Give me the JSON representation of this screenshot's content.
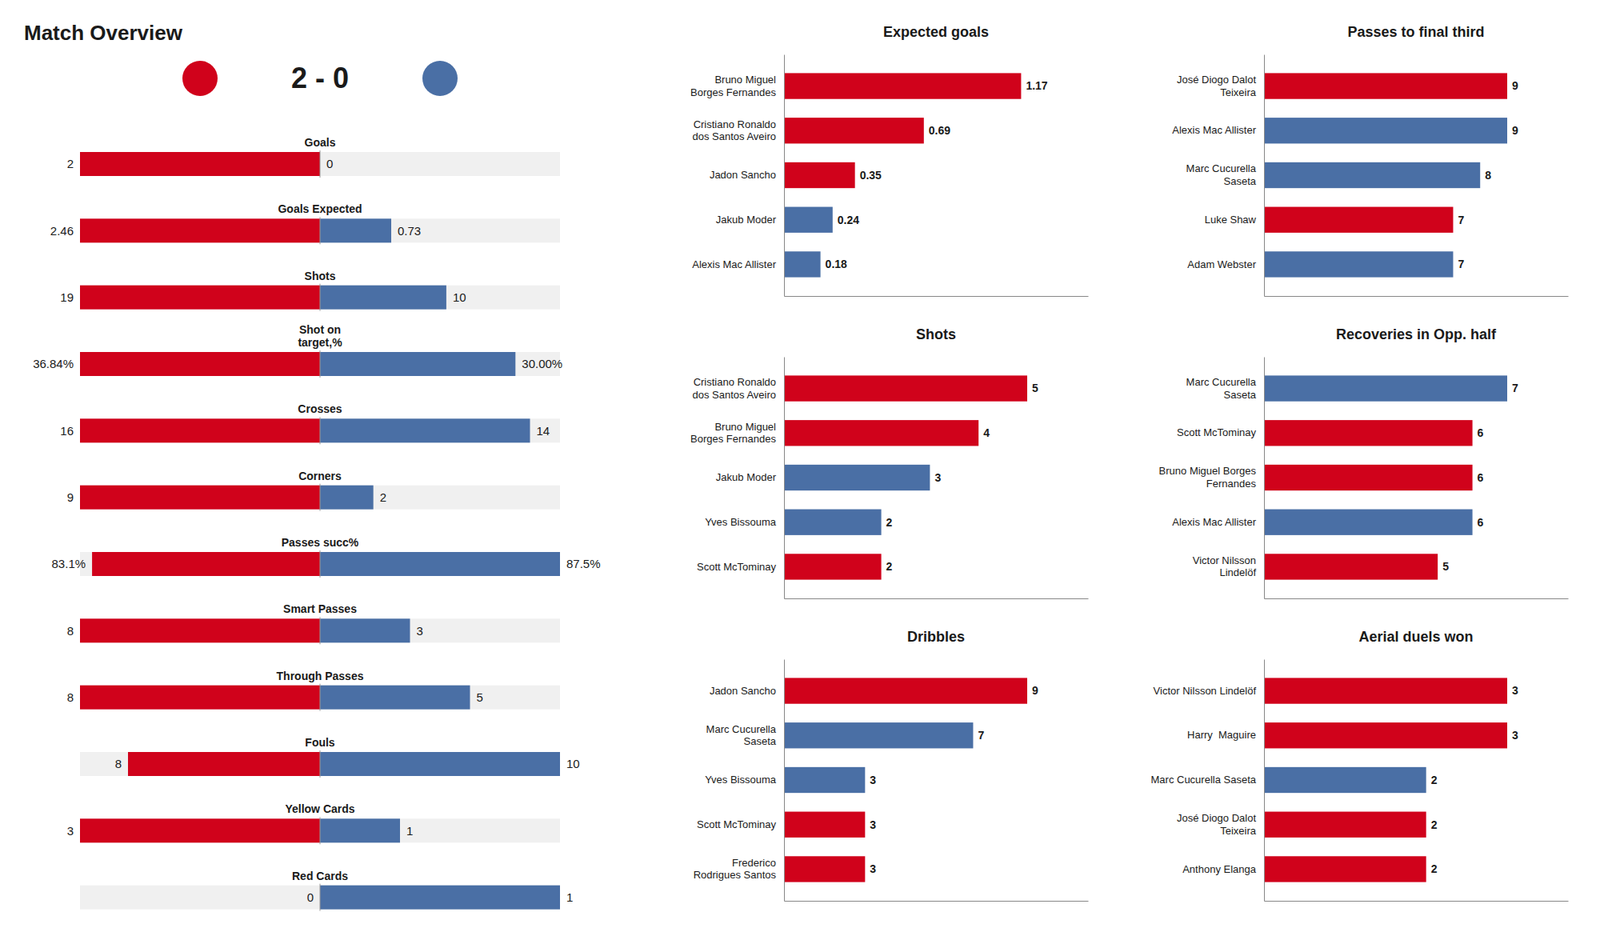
{
  "chart_data": [
    {
      "type": "diverging",
      "orientation": "horizontal",
      "title": "Match Overview",
      "subtitle": "2 - 0",
      "categories": [
        "Goals",
        "Goals Expected",
        "Shots",
        "Shot on\ntarget,%",
        "Crosses",
        "Corners",
        "Passes succ%",
        "Smart Passes",
        "Through Passes",
        "Fouls",
        "Yellow Cards",
        "Red Cards"
      ],
      "series": [
        {
          "color": "#D0021B",
          "values": [
            2,
            2.46,
            19,
            36.84,
            16,
            9,
            83.1,
            8,
            8,
            8,
            3,
            0
          ],
          "value_labels": [
            "2",
            "2.46",
            "19",
            "36.84%",
            "16",
            "9",
            "83.1%",
            "8",
            "8",
            "8",
            "3",
            "0"
          ]
        },
        {
          "color": "#4A6FA5",
          "values": [
            0,
            0.73,
            10,
            30.0,
            14,
            2,
            87.5,
            3,
            5,
            10,
            1,
            1
          ],
          "value_labels": [
            "0",
            "0.73",
            "10",
            "30.00%",
            "14",
            "2",
            "87.5%",
            "3",
            "5",
            "10",
            "1",
            "1"
          ]
        }
      ],
      "scale_max": [
        2,
        2.46,
        19,
        36.84,
        16,
        9,
        87.5,
        8,
        8,
        10,
        3,
        1
      ],
      "data_labels": true,
      "tick_labels": "y",
      "grid": false
    },
    {
      "type": "bar",
      "orientation": "horizontal",
      "title": "Expected goals",
      "categories": [
        "Bruno Miguel\nBorges Fernandes",
        "Cristiano Ronaldo\ndos Santos Aveiro",
        "Jadon Sancho",
        "Jakub Moder",
        "Alexis Mac Allister"
      ],
      "values": [
        1.17,
        0.69,
        0.35,
        0.24,
        0.18
      ],
      "colors": [
        "#D0021B",
        "#D0021B",
        "#D0021B",
        "#4A6FA5",
        "#4A6FA5"
      ],
      "xlim": [
        0,
        1.5
      ],
      "data_labels": true,
      "tick_labels": "y",
      "grid": false
    },
    {
      "type": "bar",
      "orientation": "horizontal",
      "title": "Passes to final third",
      "categories": [
        "José Diogo Dalot\nTeixeira",
        "Alexis Mac Allister",
        "Marc Cucurella\nSaseta",
        "Luke Shaw",
        "Adam Webster"
      ],
      "values": [
        9,
        9,
        8,
        7,
        7
      ],
      "colors": [
        "#D0021B",
        "#4A6FA5",
        "#4A6FA5",
        "#D0021B",
        "#4A6FA5"
      ],
      "xlim": [
        0,
        11.25
      ],
      "data_labels": true,
      "tick_labels": "y",
      "grid": false
    },
    {
      "type": "bar",
      "orientation": "horizontal",
      "title": "Shots",
      "categories": [
        "Cristiano Ronaldo\ndos Santos Aveiro",
        "Bruno Miguel\nBorges Fernandes",
        "Jakub Moder",
        "Yves Bissouma",
        "Scott McTominay"
      ],
      "values": [
        5,
        4,
        3,
        2,
        2
      ],
      "colors": [
        "#D0021B",
        "#D0021B",
        "#4A6FA5",
        "#4A6FA5",
        "#D0021B"
      ],
      "xlim": [
        0,
        6.25
      ],
      "data_labels": true,
      "tick_labels": "y",
      "grid": false
    },
    {
      "type": "bar",
      "orientation": "horizontal",
      "title": "Recoveries in Opp. half",
      "categories": [
        "Marc Cucurella\nSaseta",
        "Scott McTominay",
        "Bruno Miguel Borges\nFernandes",
        "Alexis Mac Allister",
        "Victor Nilsson\nLindelöf"
      ],
      "values": [
        7,
        6,
        6,
        6,
        5
      ],
      "colors": [
        "#4A6FA5",
        "#D0021B",
        "#D0021B",
        "#4A6FA5",
        "#D0021B"
      ],
      "xlim": [
        0,
        8.75
      ],
      "data_labels": true,
      "tick_labels": "y",
      "grid": false
    },
    {
      "type": "bar",
      "orientation": "horizontal",
      "title": "Dribbles",
      "categories": [
        "Jadon Sancho",
        "Marc Cucurella\nSaseta",
        "Yves Bissouma",
        "Scott McTominay",
        "Frederico\nRodrigues Santos"
      ],
      "values": [
        9,
        7,
        3,
        3,
        3
      ],
      "colors": [
        "#D0021B",
        "#4A6FA5",
        "#4A6FA5",
        "#D0021B",
        "#D0021B"
      ],
      "xlim": [
        0,
        11.25
      ],
      "data_labels": true,
      "tick_labels": "y",
      "grid": false
    },
    {
      "type": "bar",
      "orientation": "horizontal",
      "title": "Aerial duels won",
      "categories": [
        "Victor Nilsson Lindelöf",
        "Harry  Maguire",
        "Marc Cucurella Saseta",
        "José Diogo Dalot\nTeixeira",
        "Anthony Elanga"
      ],
      "values": [
        3,
        3,
        2,
        2,
        2
      ],
      "colors": [
        "#D0021B",
        "#D0021B",
        "#4A6FA5",
        "#D0021B",
        "#D0021B"
      ],
      "xlim": [
        0,
        3.75
      ],
      "data_labels": true,
      "tick_labels": "y",
      "grid": false
    }
  ]
}
